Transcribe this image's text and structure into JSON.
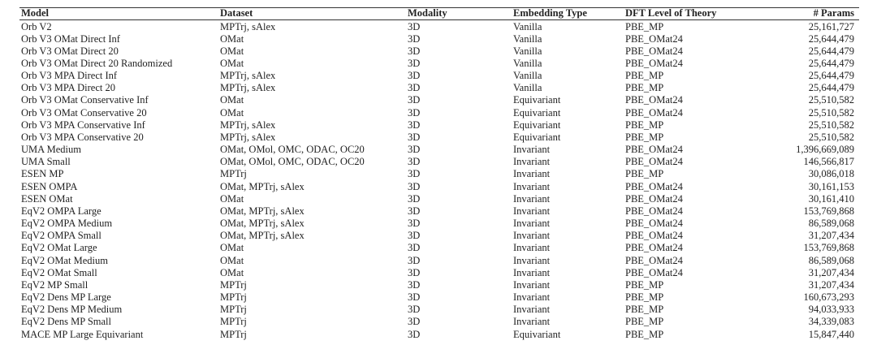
{
  "table": {
    "header": [
      "Model",
      "Dataset",
      "Modality",
      "Embedding Type",
      "DFT Level of Theory",
      "# Params"
    ],
    "rows": [
      [
        "Orb V2",
        "MPTrj, sAlex",
        "3D",
        "Vanilla",
        "PBE_MP",
        "25,161,727"
      ],
      [
        "Orb V3 OMat Direct Inf",
        "OMat",
        "3D",
        "Vanilla",
        "PBE_OMat24",
        "25,644,479"
      ],
      [
        "Orb V3 OMat Direct 20",
        "OMat",
        "3D",
        "Vanilla",
        "PBE_OMat24",
        "25,644,479"
      ],
      [
        "Orb V3 OMat Direct 20 Randomized",
        "OMat",
        "3D",
        "Vanilla",
        "PBE_OMat24",
        "25,644,479"
      ],
      [
        "Orb V3 MPA Direct Inf",
        "MPTrj, sAlex",
        "3D",
        "Vanilla",
        "PBE_MP",
        "25,644,479"
      ],
      [
        "Orb V3 MPA Direct 20",
        "MPTrj, sAlex",
        "3D",
        "Vanilla",
        "PBE_MP",
        "25,644,479"
      ],
      [
        "Orb V3 OMat Conservative Inf",
        "OMat",
        "3D",
        "Equivariant",
        "PBE_OMat24",
        "25,510,582"
      ],
      [
        "Orb V3 OMat Conservative 20",
        "OMat",
        "3D",
        "Equivariant",
        "PBE_OMat24",
        "25,510,582"
      ],
      [
        "Orb V3 MPA Conservative Inf",
        "MPTrj, sAlex",
        "3D",
        "Equivariant",
        "PBE_MP",
        "25,510,582"
      ],
      [
        "Orb V3 MPA Conservative 20",
        "MPTrj, sAlex",
        "3D",
        "Equivariant",
        "PBE_MP",
        "25,510,582"
      ],
      [
        "UMA Medium",
        "OMat, OMol, OMC, ODAC, OC20",
        "3D",
        "Invariant",
        "PBE_OMat24",
        "1,396,669,089"
      ],
      [
        "UMA Small",
        "OMat, OMol, OMC, ODAC, OC20",
        "3D",
        "Invariant",
        "PBE_OMat24",
        "146,566,817"
      ],
      [
        "ESEN MP",
        "MPTrj",
        "3D",
        "Invariant",
        "PBE_MP",
        "30,086,018"
      ],
      [
        "ESEN OMPA",
        "OMat, MPTrj, sAlex",
        "3D",
        "Invariant",
        "PBE_OMat24",
        "30,161,153"
      ],
      [
        "ESEN OMat",
        "OMat",
        "3D",
        "Invariant",
        "PBE_OMat24",
        "30,161,410"
      ],
      [
        "EqV2 OMPA Large",
        "OMat, MPTrj, sAlex",
        "3D",
        "Invariant",
        "PBE_OMat24",
        "153,769,868"
      ],
      [
        "EqV2 OMPA Medium",
        "OMat, MPTrj, sAlex",
        "3D",
        "Invariant",
        "PBE_OMat24",
        "86,589,068"
      ],
      [
        "EqV2 OMPA Small",
        "OMat, MPTrj, sAlex",
        "3D",
        "Invariant",
        "PBE_OMat24",
        "31,207,434"
      ],
      [
        "EqV2 OMat Large",
        "OMat",
        "3D",
        "Invariant",
        "PBE_OMat24",
        "153,769,868"
      ],
      [
        "EqV2 OMat Medium",
        "OMat",
        "3D",
        "Invariant",
        "PBE_OMat24",
        "86,589,068"
      ],
      [
        "EqV2 OMat Small",
        "OMat",
        "3D",
        "Invariant",
        "PBE_OMat24",
        "31,207,434"
      ],
      [
        "EqV2 MP Small",
        "MPTrj",
        "3D",
        "Invariant",
        "PBE_MP",
        "31,207,434"
      ],
      [
        "EqV2 Dens MP Large",
        "MPTrj",
        "3D",
        "Invariant",
        "PBE_MP",
        "160,673,293"
      ],
      [
        "EqV2 Dens MP Medium",
        "MPTrj",
        "3D",
        "Invariant",
        "PBE_MP",
        "94,033,933"
      ],
      [
        "EqV2 Dens MP Small",
        "MPTrj",
        "3D",
        "Invariant",
        "PBE_MP",
        "34,339,083"
      ],
      [
        "MACE MP Large Equivariant",
        "MPTrj",
        "3D",
        "Equivariant",
        "PBE_MP",
        "15,847,440"
      ]
    ]
  }
}
